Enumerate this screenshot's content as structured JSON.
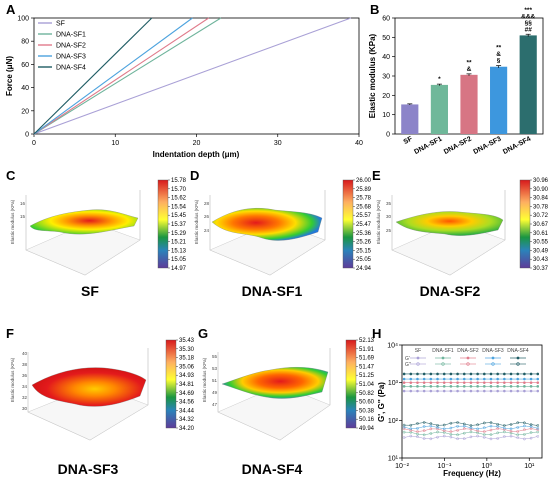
{
  "colors": {
    "SF": "#a9a0d6",
    "DNA-SF1": "#6fb49c",
    "DNA-SF2": "#e07b8b",
    "DNA-SF3": "#4da3de",
    "DNA-SF4": "#1f5c64",
    "bar_SF": "#8c84c9",
    "bar_DNA-SF1": "#6fb89a",
    "bar_DNA-SF2": "#d77584",
    "bar_DNA-SF3": "#3d97de",
    "bar_DNA-SF4": "#2c6e6e"
  },
  "panels": {
    "A": {
      "letter": "A"
    },
    "B": {
      "letter": "B"
    },
    "C": {
      "letter": "C",
      "caption": "SF",
      "zlabel": "Elastic modulus (KPa)"
    },
    "D": {
      "letter": "D",
      "caption": "DNA-SF1",
      "zlabel": "Elastic modulus (KPa)"
    },
    "E": {
      "letter": "E",
      "caption": "DNA-SF2",
      "zlabel": "Elastic modulus (KPa)"
    },
    "F": {
      "letter": "F",
      "caption": "DNA-SF3",
      "zlabel": "Elastic modulus (KPa)"
    },
    "G": {
      "letter": "G",
      "caption": "DNA-SF4",
      "zlabel": "Elastic modulus (KPa)"
    },
    "H": {
      "letter": "H"
    }
  },
  "chart_data": [
    {
      "id": "A",
      "type": "line",
      "xlabel": "Indentation depth (μm)",
      "ylabel": "Force (μN)",
      "xlim": [
        0,
        40
      ],
      "ylim": [
        0,
        100
      ],
      "xticks": [
        0,
        10,
        20,
        30,
        40
      ],
      "yticks": [
        0,
        20,
        40,
        60,
        80,
        100
      ],
      "legend_position": "top-left",
      "series": [
        {
          "name": "SF",
          "x": [
            0,
            39
          ],
          "y": [
            0,
            100
          ]
        },
        {
          "name": "DNA-SF1",
          "x": [
            0,
            23
          ],
          "y": [
            0,
            100
          ]
        },
        {
          "name": "DNA-SF2",
          "x": [
            0,
            21.5
          ],
          "y": [
            0,
            100
          ]
        },
        {
          "name": "DNA-SF3",
          "x": [
            0,
            19.5
          ],
          "y": [
            0,
            100
          ]
        },
        {
          "name": "DNA-SF4",
          "x": [
            0,
            14.5
          ],
          "y": [
            0,
            100
          ]
        }
      ]
    },
    {
      "id": "B",
      "type": "bar",
      "ylabel": "Elastic modulus (KPa)",
      "ylim": [
        0,
        60
      ],
      "yticks": [
        0,
        10,
        20,
        30,
        40,
        50,
        60
      ],
      "categories": [
        "SF",
        "DNA-SF1",
        "DNA-SF2",
        "DNA-SF3",
        "DNA-SF4"
      ],
      "values": [
        15.3,
        25.4,
        30.6,
        34.8,
        51.0
      ],
      "errors": [
        0.3,
        0.4,
        0.5,
        0.6,
        0.6
      ],
      "annotations": [
        [],
        [
          "*"
        ],
        [
          "**",
          "&"
        ],
        [
          "**",
          "&",
          "§"
        ],
        [
          "***",
          "&&&",
          "§§",
          "##"
        ]
      ]
    },
    {
      "id": "C",
      "type": "heatmap",
      "colorbar_ticks": [
        "15.78",
        "15.70",
        "15.62",
        "15.54",
        "15.45",
        "15.37",
        "15.29",
        "15.21",
        "15.13",
        "15.05",
        "14.97"
      ],
      "zticks": [
        "16",
        "15"
      ]
    },
    {
      "id": "D",
      "type": "heatmap",
      "colorbar_ticks": [
        "26.00",
        "25.89",
        "25.78",
        "25.68",
        "25.57",
        "25.47",
        "25.36",
        "25.26",
        "25.15",
        "25.05",
        "24.94"
      ],
      "zticks": [
        "28",
        "26",
        "24"
      ]
    },
    {
      "id": "E",
      "type": "heatmap",
      "colorbar_ticks": [
        "30.96",
        "30.90",
        "30.84",
        "30.78",
        "30.72",
        "30.67",
        "30.61",
        "30.55",
        "30.49",
        "30.43",
        "30.37"
      ],
      "zticks": [
        "35",
        "30",
        "25"
      ]
    },
    {
      "id": "F",
      "type": "heatmap",
      "colorbar_ticks": [
        "35.43",
        "35.30",
        "35.18",
        "35.06",
        "34.93",
        "34.81",
        "34.69",
        "34.56",
        "34.44",
        "34.32",
        "34.20"
      ],
      "zticks": [
        "40",
        "38",
        "36",
        "34",
        "32",
        "30"
      ]
    },
    {
      "id": "G",
      "type": "heatmap",
      "colorbar_ticks": [
        "52.13",
        "51.91",
        "51.69",
        "51.47",
        "51.25",
        "51.04",
        "50.82",
        "50.60",
        "50.38",
        "50.16",
        "49.94"
      ],
      "zticks": [
        "55",
        "53",
        "51",
        "49",
        "47"
      ]
    },
    {
      "id": "H",
      "type": "scatter",
      "xlabel": "Frequency (Hz)",
      "ylabel": "G', G'' (Pa)",
      "xscale": "log",
      "yscale": "log",
      "xticks": [
        "10⁻²",
        "10⁻¹",
        "10⁰",
        "10¹"
      ],
      "yticks": [
        "10¹",
        "10²",
        "10³",
        "10⁴"
      ],
      "legend_labels": {
        "storage": "G'",
        "loss": "G''"
      },
      "series": [
        {
          "name": "SF",
          "G_prime": 600,
          "G_double_prime": 35
        },
        {
          "name": "DNA-SF1",
          "G_prime": 800,
          "G_double_prime": 45
        },
        {
          "name": "DNA-SF2",
          "G_prime": 1000,
          "G_double_prime": 55
        },
        {
          "name": "DNA-SF3",
          "G_prime": 1250,
          "G_double_prime": 65
        },
        {
          "name": "DNA-SF4",
          "G_prime": 1700,
          "G_double_prime": 80
        }
      ]
    }
  ]
}
